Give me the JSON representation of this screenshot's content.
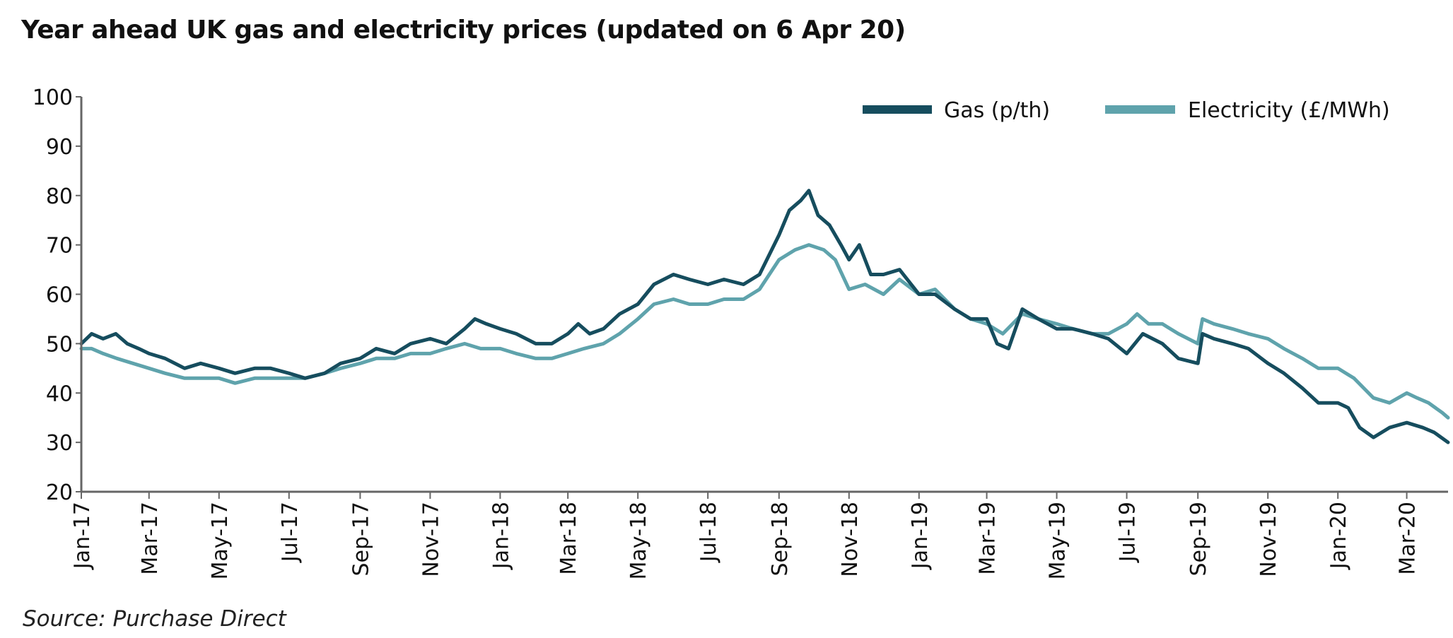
{
  "title": "Year ahead UK gas and electricity prices (updated on 6 Apr 20)",
  "source": "Source: Purchase Direct",
  "colors": {
    "gas": "#164d5e",
    "electricity": "#5fa3ac",
    "axis": "#666666"
  },
  "chart_data": {
    "type": "line",
    "title": "Year ahead UK gas and electricity prices (updated on 6 Apr 20)",
    "xlabel": "",
    "ylabel": "",
    "ylim": [
      20,
      100
    ],
    "yticks": [
      "20",
      "30",
      "40",
      "50",
      "60",
      "70",
      "80",
      "90",
      "100"
    ],
    "xlim": [
      "2017-01-01",
      "2020-04-06"
    ],
    "xticks": [
      {
        "date": "2017-01-01",
        "label": "Jan-17"
      },
      {
        "date": "2017-03-01",
        "label": "Mar-17"
      },
      {
        "date": "2017-05-01",
        "label": "May-17"
      },
      {
        "date": "2017-07-01",
        "label": "Jul-17"
      },
      {
        "date": "2017-09-01",
        "label": "Sep-17"
      },
      {
        "date": "2017-11-01",
        "label": "Nov-17"
      },
      {
        "date": "2018-01-01",
        "label": "Jan-18"
      },
      {
        "date": "2018-03-01",
        "label": "Mar-18"
      },
      {
        "date": "2018-05-01",
        "label": "May-18"
      },
      {
        "date": "2018-07-01",
        "label": "Jul-18"
      },
      {
        "date": "2018-09-01",
        "label": "Sep-18"
      },
      {
        "date": "2018-11-01",
        "label": "Nov-18"
      },
      {
        "date": "2019-01-01",
        "label": "Jan-19"
      },
      {
        "date": "2019-03-01",
        "label": "Mar-19"
      },
      {
        "date": "2019-05-01",
        "label": "May-19"
      },
      {
        "date": "2019-07-01",
        "label": "Jul-19"
      },
      {
        "date": "2019-09-01",
        "label": "Sep-19"
      },
      {
        "date": "2019-11-01",
        "label": "Nov-19"
      },
      {
        "date": "2020-01-01",
        "label": "Jan-20"
      },
      {
        "date": "2020-03-01",
        "label": "Mar-20"
      }
    ],
    "grid": false,
    "legend_position": "top-right",
    "series": [
      {
        "name": "Gas (p/th)",
        "color": "#164d5e",
        "points": [
          [
            "2017-01-01",
            50
          ],
          [
            "2017-01-10",
            52
          ],
          [
            "2017-01-20",
            51
          ],
          [
            "2017-01-31",
            52
          ],
          [
            "2017-02-10",
            50
          ],
          [
            "2017-02-20",
            49
          ],
          [
            "2017-03-01",
            48
          ],
          [
            "2017-03-15",
            47
          ],
          [
            "2017-04-01",
            45
          ],
          [
            "2017-04-15",
            46
          ],
          [
            "2017-05-01",
            45
          ],
          [
            "2017-05-15",
            44
          ],
          [
            "2017-06-01",
            45
          ],
          [
            "2017-06-15",
            45
          ],
          [
            "2017-07-01",
            44
          ],
          [
            "2017-07-15",
            43
          ],
          [
            "2017-08-01",
            44
          ],
          [
            "2017-08-15",
            46
          ],
          [
            "2017-09-01",
            47
          ],
          [
            "2017-09-15",
            49
          ],
          [
            "2017-10-01",
            48
          ],
          [
            "2017-10-15",
            50
          ],
          [
            "2017-11-01",
            51
          ],
          [
            "2017-11-15",
            50
          ],
          [
            "2017-12-01",
            53
          ],
          [
            "2017-12-10",
            55
          ],
          [
            "2017-12-20",
            54
          ],
          [
            "2018-01-01",
            53
          ],
          [
            "2018-01-15",
            52
          ],
          [
            "2018-02-01",
            50
          ],
          [
            "2018-02-15",
            50
          ],
          [
            "2018-03-01",
            52
          ],
          [
            "2018-03-10",
            54
          ],
          [
            "2018-03-20",
            52
          ],
          [
            "2018-04-01",
            53
          ],
          [
            "2018-04-15",
            56
          ],
          [
            "2018-05-01",
            58
          ],
          [
            "2018-05-15",
            62
          ],
          [
            "2018-06-01",
            64
          ],
          [
            "2018-06-15",
            63
          ],
          [
            "2018-07-01",
            62
          ],
          [
            "2018-07-15",
            63
          ],
          [
            "2018-08-01",
            62
          ],
          [
            "2018-08-15",
            64
          ],
          [
            "2018-09-01",
            72
          ],
          [
            "2018-09-10",
            77
          ],
          [
            "2018-09-20",
            79
          ],
          [
            "2018-09-27",
            81
          ],
          [
            "2018-10-05",
            76
          ],
          [
            "2018-10-15",
            74
          ],
          [
            "2018-10-25",
            70
          ],
          [
            "2018-11-01",
            67
          ],
          [
            "2018-11-10",
            70
          ],
          [
            "2018-11-20",
            64
          ],
          [
            "2018-12-01",
            64
          ],
          [
            "2018-12-15",
            65
          ],
          [
            "2019-01-01",
            60
          ],
          [
            "2019-01-15",
            60
          ],
          [
            "2019-02-01",
            57
          ],
          [
            "2019-02-15",
            55
          ],
          [
            "2019-03-01",
            55
          ],
          [
            "2019-03-10",
            50
          ],
          [
            "2019-03-20",
            49
          ],
          [
            "2019-04-01",
            57
          ],
          [
            "2019-04-15",
            55
          ],
          [
            "2019-05-01",
            53
          ],
          [
            "2019-05-15",
            53
          ],
          [
            "2019-06-01",
            52
          ],
          [
            "2019-06-15",
            51
          ],
          [
            "2019-07-01",
            48
          ],
          [
            "2019-07-15",
            52
          ],
          [
            "2019-08-01",
            50
          ],
          [
            "2019-08-15",
            47
          ],
          [
            "2019-09-01",
            46
          ],
          [
            "2019-09-05",
            52
          ],
          [
            "2019-09-15",
            51
          ],
          [
            "2019-10-01",
            50
          ],
          [
            "2019-10-15",
            49
          ],
          [
            "2019-11-01",
            46
          ],
          [
            "2019-11-15",
            44
          ],
          [
            "2019-12-01",
            41
          ],
          [
            "2019-12-15",
            38
          ],
          [
            "2020-01-01",
            38
          ],
          [
            "2020-01-10",
            37
          ],
          [
            "2020-01-20",
            33
          ],
          [
            "2020-02-01",
            31
          ],
          [
            "2020-02-15",
            33
          ],
          [
            "2020-03-01",
            34
          ],
          [
            "2020-03-15",
            33
          ],
          [
            "2020-03-25",
            32
          ],
          [
            "2020-04-06",
            30
          ]
        ]
      },
      {
        "name": "Electricity (£/MWh)",
        "color": "#5fa3ac",
        "points": [
          [
            "2017-01-01",
            49
          ],
          [
            "2017-01-10",
            49
          ],
          [
            "2017-01-20",
            48
          ],
          [
            "2017-02-01",
            47
          ],
          [
            "2017-02-15",
            46
          ],
          [
            "2017-03-01",
            45
          ],
          [
            "2017-03-15",
            44
          ],
          [
            "2017-04-01",
            43
          ],
          [
            "2017-04-15",
            43
          ],
          [
            "2017-05-01",
            43
          ],
          [
            "2017-05-15",
            42
          ],
          [
            "2017-06-01",
            43
          ],
          [
            "2017-06-15",
            43
          ],
          [
            "2017-07-01",
            43
          ],
          [
            "2017-07-15",
            43
          ],
          [
            "2017-08-01",
            44
          ],
          [
            "2017-08-15",
            45
          ],
          [
            "2017-09-01",
            46
          ],
          [
            "2017-09-15",
            47
          ],
          [
            "2017-10-01",
            47
          ],
          [
            "2017-10-15",
            48
          ],
          [
            "2017-11-01",
            48
          ],
          [
            "2017-11-15",
            49
          ],
          [
            "2017-12-01",
            50
          ],
          [
            "2017-12-15",
            49
          ],
          [
            "2018-01-01",
            49
          ],
          [
            "2018-01-15",
            48
          ],
          [
            "2018-02-01",
            47
          ],
          [
            "2018-02-15",
            47
          ],
          [
            "2018-03-01",
            48
          ],
          [
            "2018-03-15",
            49
          ],
          [
            "2018-04-01",
            50
          ],
          [
            "2018-04-15",
            52
          ],
          [
            "2018-05-01",
            55
          ],
          [
            "2018-05-15",
            58
          ],
          [
            "2018-06-01",
            59
          ],
          [
            "2018-06-15",
            58
          ],
          [
            "2018-07-01",
            58
          ],
          [
            "2018-07-15",
            59
          ],
          [
            "2018-08-01",
            59
          ],
          [
            "2018-08-15",
            61
          ],
          [
            "2018-09-01",
            67
          ],
          [
            "2018-09-15",
            69
          ],
          [
            "2018-09-27",
            70
          ],
          [
            "2018-10-10",
            69
          ],
          [
            "2018-10-20",
            67
          ],
          [
            "2018-11-01",
            61
          ],
          [
            "2018-11-15",
            62
          ],
          [
            "2018-12-01",
            60
          ],
          [
            "2018-12-15",
            63
          ],
          [
            "2019-01-01",
            60
          ],
          [
            "2019-01-15",
            61
          ],
          [
            "2019-02-01",
            57
          ],
          [
            "2019-02-15",
            55
          ],
          [
            "2019-03-01",
            54
          ],
          [
            "2019-03-15",
            52
          ],
          [
            "2019-04-01",
            56
          ],
          [
            "2019-04-15",
            55
          ],
          [
            "2019-05-01",
            54
          ],
          [
            "2019-05-15",
            53
          ],
          [
            "2019-06-01",
            52
          ],
          [
            "2019-06-15",
            52
          ],
          [
            "2019-07-01",
            54
          ],
          [
            "2019-07-10",
            56
          ],
          [
            "2019-07-20",
            54
          ],
          [
            "2019-08-01",
            54
          ],
          [
            "2019-08-15",
            52
          ],
          [
            "2019-09-01",
            50
          ],
          [
            "2019-09-05",
            55
          ],
          [
            "2019-09-15",
            54
          ],
          [
            "2019-10-01",
            53
          ],
          [
            "2019-10-15",
            52
          ],
          [
            "2019-11-01",
            51
          ],
          [
            "2019-11-15",
            49
          ],
          [
            "2019-12-01",
            47
          ],
          [
            "2019-12-15",
            45
          ],
          [
            "2020-01-01",
            45
          ],
          [
            "2020-01-15",
            43
          ],
          [
            "2020-02-01",
            39
          ],
          [
            "2020-02-15",
            38
          ],
          [
            "2020-03-01",
            40
          ],
          [
            "2020-03-10",
            39
          ],
          [
            "2020-03-20",
            38
          ],
          [
            "2020-04-01",
            36
          ],
          [
            "2020-04-06",
            35
          ]
        ]
      }
    ]
  }
}
